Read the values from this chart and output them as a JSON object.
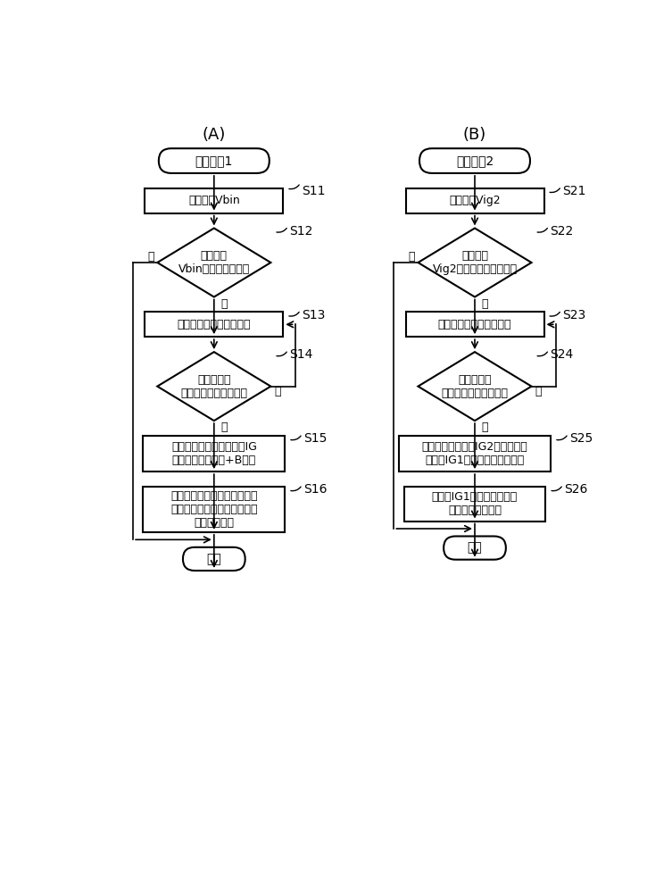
{
  "title_A": "(A)",
  "title_B": "(B)",
  "bg_color": "#ffffff",
  "flow_A": {
    "start_label": "恢复控制1",
    "steps": [
      {
        "id": "S11",
        "type": "rect",
        "label": "监测电压Vbin"
      },
      {
        "id": "S12",
        "type": "diamond",
        "label": "是否根据\nVbin而检测到断开？"
      },
      {
        "id": "S13",
        "type": "rect",
        "label": "显示电源中的异常的发生"
      },
      {
        "id": "S14",
        "type": "diamond",
        "label": "是否检测到\n用于恢复许可的输入？"
      },
      {
        "id": "S15",
        "type": "rect",
        "label": "接通恢复开关以将电力从IG\n系统的输入供给至+B系统"
      },
      {
        "id": "S16",
        "type": "rect",
        "label": "控制电力消耗抑制开关以切断\n到各个系统中的优先级低的负\n载的电力供给"
      }
    ],
    "end_label": "结束"
  },
  "flow_B": {
    "start_label": "恢复控制2",
    "steps": [
      {
        "id": "S21",
        "type": "rect",
        "label": "监测电压Vig2"
      },
      {
        "id": "S22",
        "type": "diamond",
        "label": "是否根据\nVig2而检测到故障中断？"
      },
      {
        "id": "S23",
        "type": "rect",
        "label": "显示电源中的异常的发生"
      },
      {
        "id": "S24",
        "type": "diamond",
        "label": "是否检测到\n用于恢复许可的输入？"
      },
      {
        "id": "S25",
        "type": "rect",
        "label": "切换恢复开关以将IG2系统的输入\n切换为IG1系统的继电器的输出"
      },
      {
        "id": "S26",
        "type": "rect",
        "label": "切断到IG1系统中优先级低\n的负载的电力供给"
      }
    ],
    "end_label": "结束"
  }
}
